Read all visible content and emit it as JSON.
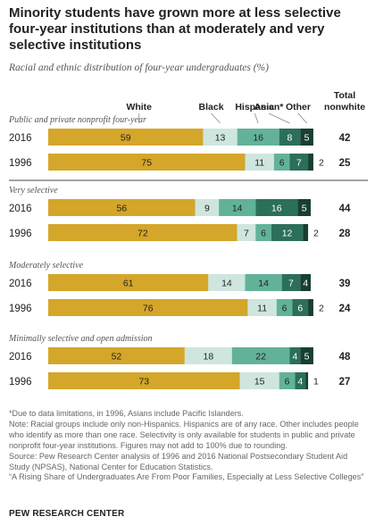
{
  "title": "Minority students have grown more at less selective four-year institutions than at moderately and very selective institutions",
  "subtitle": "Racial and ethnic distribution of four-year undergraduates (%)",
  "chart_data": {
    "type": "bar",
    "orientation": "horizontal",
    "stacked": true,
    "unit": "%",
    "series_names": [
      "White",
      "Black",
      "Hispanic",
      "Asian*",
      "Other"
    ],
    "total_header": "Total nonwhite",
    "colors": {
      "white": "#d4a629",
      "black": "#cfe6df",
      "hispanic": "#62b29a",
      "asian": "#2b6f5a",
      "other": "#173f33",
      "text_dark": "#222222",
      "text_light": "#ffffff"
    },
    "groups": [
      {
        "label": "Public and private nonprofit four-year",
        "rows": [
          {
            "year": "2016",
            "values": [
              59,
              13,
              16,
              8,
              5
            ],
            "total": 42
          },
          {
            "year": "1996",
            "values": [
              75,
              11,
              6,
              7,
              2
            ],
            "total": 25
          }
        ]
      },
      {
        "label": "Very selective",
        "rows": [
          {
            "year": "2016",
            "values": [
              56,
              9,
              14,
              16,
              5
            ],
            "total": 44
          },
          {
            "year": "1996",
            "values": [
              72,
              7,
              6,
              12,
              2
            ],
            "total": 28
          }
        ]
      },
      {
        "label": "Moderately selective",
        "rows": [
          {
            "year": "2016",
            "values": [
              61,
              14,
              14,
              7,
              4
            ],
            "total": 39
          },
          {
            "year": "1996",
            "values": [
              76,
              11,
              6,
              6,
              2
            ],
            "total": 24
          }
        ]
      },
      {
        "label": "Minimally selective and open admission",
        "rows": [
          {
            "year": "2016",
            "values": [
              52,
              18,
              22,
              4,
              5
            ],
            "total": 48
          },
          {
            "year": "1996",
            "values": [
              73,
              15,
              6,
              4,
              1
            ],
            "total": 27
          }
        ]
      }
    ]
  },
  "notes": {
    "asterisk": "*Due to data limitations, in 1996, Asians include Pacific Islanders.",
    "note": "Note: Racial groups include only non-Hispanics. Hispanics are of any race. Other includes people who identify as more than one race. Selectivity is only available for students in public and private nonprofit four-year institutions. Figures may not add to 100% due to rounding.",
    "source": "Source: Pew Research Center analysis of 1996 and 2016 National Postsecondary Student Aid Study (NPSAS), National Center for Education Statistics.",
    "report": "“A Rising Share of Undergraduates Are From Poor Families, Especially at Less Selective Colleges”"
  },
  "source_org": "PEW RESEARCH CENTER"
}
